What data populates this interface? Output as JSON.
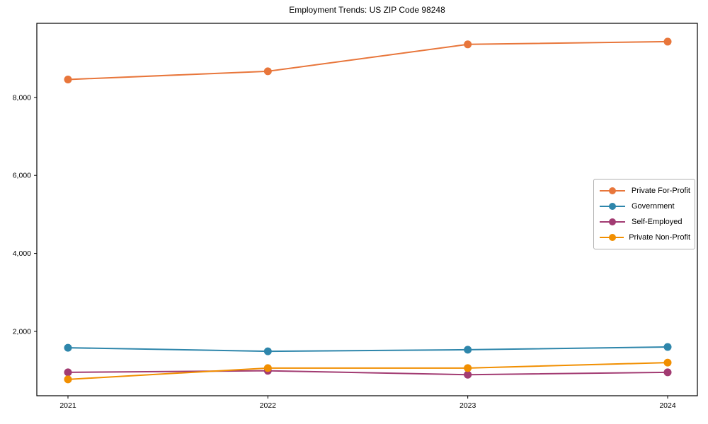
{
  "chart_data": {
    "type": "line",
    "title": "Employment Trends: US ZIP Code 98248",
    "xlabel": "",
    "ylabel": "",
    "x": [
      2021,
      2022,
      2023,
      2024
    ],
    "xtick_labels": [
      "2021",
      "2022",
      "2023",
      "2024"
    ],
    "yticks": [
      2000,
      4000,
      6000,
      8000
    ],
    "ytick_labels": [
      "2,000",
      "4,000",
      "6,000",
      "8,000"
    ],
    "ylim": [
      350,
      9900
    ],
    "grid": false,
    "legend_position": "center right",
    "series": [
      {
        "name": "Private For-Profit",
        "color": "#E8763B",
        "values": [
          8460,
          8670,
          9360,
          9430
        ]
      },
      {
        "name": "Government",
        "color": "#2E86AB",
        "values": [
          1580,
          1490,
          1530,
          1600
        ]
      },
      {
        "name": "Self-Employed",
        "color": "#A23B72",
        "values": [
          950,
          990,
          890,
          950
        ]
      },
      {
        "name": "Private Non-Profit",
        "color": "#F18F01",
        "values": [
          770,
          1060,
          1060,
          1200
        ]
      }
    ],
    "axis_color": "#000000",
    "background_color": "#ffffff"
  }
}
